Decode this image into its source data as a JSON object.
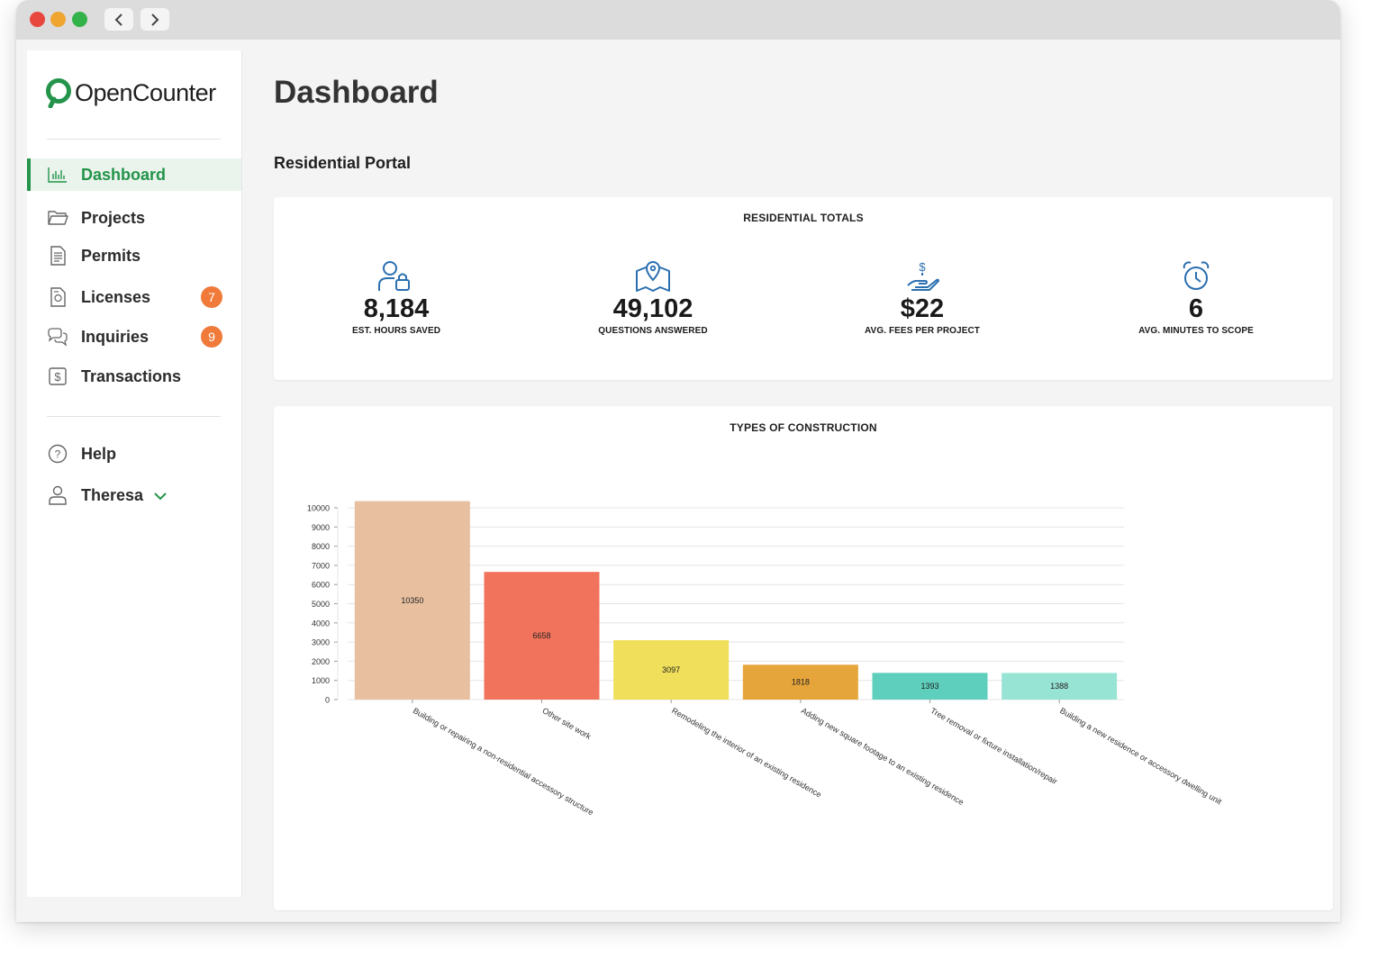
{
  "app": {
    "name": "OpenCounter"
  },
  "sidebar": {
    "items": [
      {
        "label": "Dashboard",
        "icon": "bar-chart-icon"
      },
      {
        "label": "Projects",
        "icon": "folder-icon"
      },
      {
        "label": "Permits",
        "icon": "document-icon"
      },
      {
        "label": "Licenses",
        "icon": "license-icon",
        "badge": "7"
      },
      {
        "label": "Inquiries",
        "icon": "chat-icon",
        "badge": "9"
      },
      {
        "label": "Transactions",
        "icon": "dollar-icon"
      }
    ],
    "help_label": "Help",
    "user_name": "Theresa"
  },
  "main": {
    "title": "Dashboard",
    "portal_title": "Residential Portal",
    "totals_title": "RESIDENTIAL TOTALS",
    "stats": [
      {
        "value": "8,184",
        "label": "EST. HOURS SAVED",
        "icon": "users-lock-icon"
      },
      {
        "value": "49,102",
        "label": "QUESTIONS ANSWERED",
        "icon": "map-pin-icon"
      },
      {
        "value": "$22",
        "label": "AVG. FEES PER PROJECT",
        "icon": "hand-dollar-icon"
      },
      {
        "value": "6",
        "label": "AVG. MINUTES TO SCOPE",
        "icon": "alarm-clock-icon"
      }
    ]
  },
  "colors": {
    "accent": "#23944a",
    "badge": "#f07a3a",
    "icon_blue": "#2a6fb0"
  },
  "chart_data": {
    "type": "bar",
    "title": "TYPES OF CONSTRUCTION",
    "categories": [
      "Building or repairing a non-residential accessory structure",
      "Other site work",
      "Remodeling the interior of an existing residence",
      "Adding new square footage to an existing residence",
      "Tree removal or fixture installation/repair",
      "Building a new residence or accessory dwelling unit"
    ],
    "values": [
      10350,
      6658,
      3097,
      1818,
      1393,
      1388
    ],
    "colors": [
      "#e8c0a0",
      "#f2735c",
      "#f0df5a",
      "#e6a53a",
      "#5ecfbc",
      "#97e3d4"
    ],
    "yticks": [
      0,
      1000,
      2000,
      3000,
      4000,
      5000,
      6000,
      7000,
      8000,
      9000,
      10000
    ],
    "ylim": [
      0,
      10000
    ],
    "grid": true,
    "xlabel": "",
    "ylabel": ""
  }
}
